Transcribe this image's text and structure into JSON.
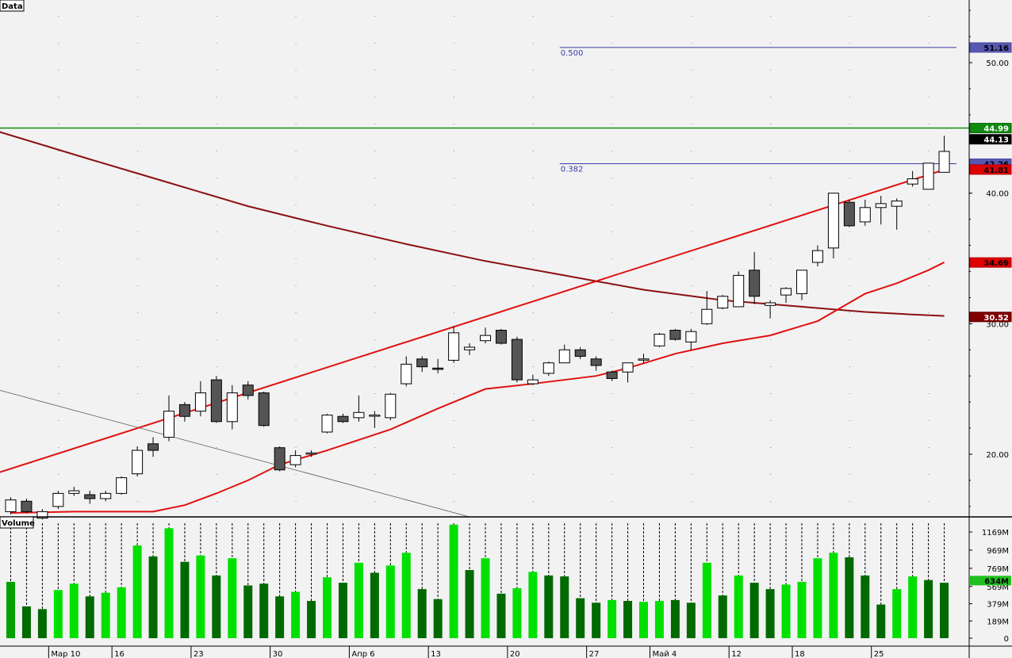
{
  "chart_data": [
    {
      "type": "candlestick",
      "panel_label": "Data",
      "ylim": [
        15.2,
        54.8
      ],
      "y_ticks": [
        "20.00",
        "30.00",
        "40.00",
        "50.00"
      ],
      "x_labels": [
        "Мар 10",
        "16",
        "23",
        "30",
        "Апр 6",
        "13",
        "20",
        "27",
        "Май 4",
        "12",
        "18",
        "25"
      ],
      "x_label_bars": [
        3,
        7,
        12,
        17,
        22,
        27,
        32,
        37,
        41,
        46,
        50,
        55
      ],
      "candles": [
        [
          15.6,
          16.5,
          15.4,
          16.7
        ],
        [
          16.4,
          15.6,
          15.5,
          16.6
        ],
        [
          15.1,
          15.6,
          15.0,
          15.8
        ],
        [
          16.0,
          17.0,
          15.8,
          17.2
        ],
        [
          17.0,
          17.2,
          16.8,
          17.5
        ],
        [
          16.9,
          16.6,
          16.2,
          17.2
        ],
        [
          16.6,
          17.0,
          16.4,
          17.2
        ],
        [
          17.0,
          18.2,
          16.9,
          18.3
        ],
        [
          18.5,
          20.3,
          18.3,
          20.6
        ],
        [
          20.8,
          20.3,
          19.8,
          21.3
        ],
        [
          21.3,
          23.3,
          21.0,
          24.5
        ],
        [
          23.8,
          22.9,
          22.5,
          24.0
        ],
        [
          23.3,
          24.7,
          22.9,
          25.6
        ],
        [
          25.7,
          22.5,
          22.4,
          26.0
        ],
        [
          22.5,
          24.7,
          21.9,
          25.3
        ],
        [
          25.3,
          24.5,
          24.2,
          25.6
        ],
        [
          24.7,
          22.2,
          22.1,
          24.8
        ],
        [
          20.5,
          18.8,
          18.7,
          20.6
        ],
        [
          19.2,
          19.9,
          19.0,
          20.3
        ],
        [
          20.1,
          20.1,
          19.8,
          20.3
        ],
        [
          21.7,
          23.0,
          21.6,
          23.1
        ],
        [
          22.9,
          22.5,
          22.4,
          23.1
        ],
        [
          22.8,
          23.2,
          22.5,
          24.5
        ],
        [
          23.0,
          23.0,
          22.0,
          23.3
        ],
        [
          22.8,
          24.6,
          22.6,
          24.7
        ],
        [
          25.4,
          26.9,
          25.2,
          27.5
        ],
        [
          27.3,
          26.7,
          26.3,
          27.5
        ],
        [
          26.6,
          26.5,
          26.2,
          27.3
        ],
        [
          27.2,
          29.3,
          27.0,
          29.8
        ],
        [
          28.0,
          28.2,
          27.6,
          28.5
        ],
        [
          28.7,
          29.1,
          28.5,
          29.7
        ],
        [
          29.5,
          28.5,
          28.4,
          29.6
        ],
        [
          28.8,
          25.7,
          25.5,
          29.0
        ],
        [
          25.4,
          25.7,
          25.3,
          26.1
        ],
        [
          26.2,
          27.0,
          26.0,
          27.1
        ],
        [
          27.0,
          28.0,
          27.0,
          28.4
        ],
        [
          28.0,
          27.5,
          27.3,
          28.2
        ],
        [
          27.3,
          26.8,
          26.4,
          27.5
        ],
        [
          26.3,
          25.8,
          25.6,
          26.4
        ],
        [
          26.3,
          27.0,
          25.5,
          27.0
        ],
        [
          27.3,
          27.3,
          27.0,
          27.7
        ],
        [
          28.3,
          29.2,
          28.2,
          29.3
        ],
        [
          29.5,
          28.8,
          28.7,
          29.6
        ],
        [
          28.6,
          29.4,
          28.0,
          29.6
        ],
        [
          30.0,
          31.1,
          29.9,
          32.5
        ],
        [
          31.2,
          32.1,
          31.1,
          32.2
        ],
        [
          31.3,
          33.7,
          31.3,
          34.0
        ],
        [
          34.1,
          32.1,
          31.5,
          35.5
        ],
        [
          31.4,
          31.6,
          30.4,
          31.8
        ],
        [
          32.2,
          32.7,
          31.6,
          32.8
        ],
        [
          32.3,
          34.1,
          31.8,
          34.1
        ],
        [
          34.7,
          35.6,
          34.4,
          36.0
        ],
        [
          35.8,
          40.0,
          35.0,
          40.0
        ],
        [
          39.3,
          37.5,
          37.4,
          39.5
        ],
        [
          37.8,
          38.9,
          37.5,
          39.5
        ],
        [
          38.9,
          39.2,
          37.6,
          39.8
        ],
        [
          39.0,
          39.4,
          37.2,
          39.6
        ],
        [
          40.7,
          41.1,
          40.5,
          41.7
        ],
        [
          40.3,
          42.3,
          40.3,
          42.2
        ],
        [
          41.6,
          43.2,
          41.6,
          44.4
        ]
      ],
      "ma_short": [
        [
          0,
          15.5
        ],
        [
          4,
          15.6
        ],
        [
          9,
          15.6
        ],
        [
          11,
          16.1
        ],
        [
          13,
          17.0
        ],
        [
          15,
          18.0
        ],
        [
          17,
          19.2
        ],
        [
          20,
          20.3
        ],
        [
          24,
          21.9
        ],
        [
          27,
          23.5
        ],
        [
          30,
          25.0
        ],
        [
          33,
          25.4
        ],
        [
          37,
          26.0
        ],
        [
          39,
          26.6
        ],
        [
          42,
          27.7
        ],
        [
          45,
          28.5
        ],
        [
          48,
          29.1
        ],
        [
          51,
          30.2
        ],
        [
          54,
          32.3
        ],
        [
          56,
          33.1
        ],
        [
          58,
          34.1
        ],
        [
          59,
          34.7
        ]
      ],
      "ma_long": [
        [
          -1,
          44.8
        ],
        [
          5,
          42.6
        ],
        [
          10,
          40.8
        ],
        [
          15,
          39.0
        ],
        [
          20,
          37.5
        ],
        [
          25,
          36.1
        ],
        [
          30,
          34.8
        ],
        [
          35,
          33.7
        ],
        [
          40,
          32.6
        ],
        [
          45,
          31.8
        ],
        [
          50,
          31.3
        ],
        [
          54,
          30.9
        ],
        [
          57,
          30.7
        ],
        [
          59,
          30.6
        ]
      ],
      "channel_line": [
        [
          -1,
          18.5
        ],
        [
          59,
          41.8
        ]
      ],
      "thin_line": [
        [
          -1,
          25.0
        ],
        [
          29,
          15.2
        ]
      ],
      "fib_levels": [
        {
          "label": "0.500",
          "value": 51.16,
          "x_start_bar": 35
        },
        {
          "label": "0.382",
          "value": 42.26,
          "x_start_bar": 35
        }
      ],
      "resistance_value": 44.99,
      "price_badges": [
        {
          "text": "51.16",
          "value": 51.16,
          "bg": "#5757b3",
          "fg": "#000000",
          "border": "#4a4aa0"
        },
        {
          "text": "44.99",
          "value": 44.99,
          "bg": "#0f8a0f",
          "fg": "#ffffff",
          "border": "#0a6a0a"
        },
        {
          "text": "44.13",
          "value": 44.13,
          "bg": "#000000",
          "fg": "#ffffff",
          "border": "#000000"
        },
        {
          "text": "42.26",
          "value": 42.26,
          "bg": "#5757b3",
          "fg": "#000000",
          "border": "#4a4aa0"
        },
        {
          "text": "41.81",
          "value": 41.81,
          "bg": "#e00000",
          "fg": "#000000",
          "border": "#b00000"
        },
        {
          "text": "34.69",
          "value": 34.69,
          "bg": "#e00000",
          "fg": "#000000",
          "border": "#b00000"
        },
        {
          "text": "30.52",
          "value": 30.52,
          "bg": "#800000",
          "fg": "#ffffff",
          "border": "#600000"
        }
      ],
      "colors": {
        "up_candle": "#ffffff",
        "down_candle": "#555555",
        "ma_short": "#e01010",
        "ma_long": "#8b1010",
        "channel": "#e01010",
        "thin_line": "#555555",
        "fib": "#3a3aa8",
        "resistance": "#0f8a0f"
      }
    },
    {
      "type": "bar",
      "panel_label": "Volume",
      "ylim": [
        0,
        1300
      ],
      "y_ticks": [
        "0",
        "189M",
        "379M",
        "569M",
        "769M",
        "969M",
        "1169M"
      ],
      "value_badge": {
        "text": "634M",
        "value": 634,
        "bg": "#20c020",
        "fg": "#000000"
      },
      "values": [
        620,
        350,
        320,
        530,
        600,
        460,
        500,
        560,
        1020,
        900,
        1210,
        840,
        910,
        690,
        880,
        580,
        600,
        460,
        510,
        410,
        670,
        610,
        830,
        720,
        800,
        940,
        540,
        430,
        1250,
        750,
        880,
        490,
        550,
        730,
        690,
        680,
        440,
        390,
        420,
        410,
        400,
        410,
        420,
        390,
        830,
        470,
        690,
        610,
        540,
        590,
        620,
        880,
        940,
        890,
        690,
        370,
        540,
        680,
        640,
        610
      ],
      "bar_colors": [
        "#00a000",
        "#006a00",
        "#006a00",
        "#00e000",
        "#00e000",
        "#006a00",
        "#00e000",
        "#00e000",
        "#00e000",
        "#006a00",
        "#00e000",
        "#006a00",
        "#00e000",
        "#006a00",
        "#00e000",
        "#006a00",
        "#006a00",
        "#006a00",
        "#00e000",
        "#006a00",
        "#00e000",
        "#006a00",
        "#00e000",
        "#006a00",
        "#00e000",
        "#00e000",
        "#006a00",
        "#006a00",
        "#00e000",
        "#006a00",
        "#00e000",
        "#006a00",
        "#00e000",
        "#00e000",
        "#006a00",
        "#006a00",
        "#006a00",
        "#006a00",
        "#00e000",
        "#006a00",
        "#00e000",
        "#00e000",
        "#006a00",
        "#006a00",
        "#00e000",
        "#006a00",
        "#00e000",
        "#006a00",
        "#006a00",
        "#00e000",
        "#00e000",
        "#00e000",
        "#00e000",
        "#006a00",
        "#006a00",
        "#006a00",
        "#00e000",
        "#00e000",
        "#006a00",
        "#006a00"
      ]
    }
  ]
}
